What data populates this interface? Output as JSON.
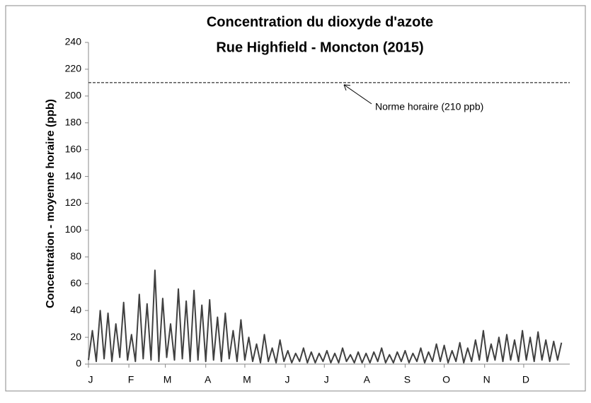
{
  "chart_data": {
    "type": "line",
    "title": "Concentration du dioxyde d'azote",
    "subtitle": "Rue Highfield - Moncton (2015)",
    "y_label": "Concentration - moyenne horaire (ppb)",
    "xlim": [
      0,
      365
    ],
    "xticks": [
      {
        "value": 0,
        "label": "J"
      },
      {
        "value": 31,
        "label": "F"
      },
      {
        "value": 59,
        "label": "M"
      },
      {
        "value": 90,
        "label": "A"
      },
      {
        "value": 120,
        "label": "M"
      },
      {
        "value": 151,
        "label": "J"
      },
      {
        "value": 181,
        "label": "J"
      },
      {
        "value": 212,
        "label": "A"
      },
      {
        "value": 243,
        "label": "S"
      },
      {
        "value": 273,
        "label": "O"
      },
      {
        "value": 304,
        "label": "N"
      },
      {
        "value": 334,
        "label": "D"
      }
    ],
    "ylim": [
      0,
      240
    ],
    "yticks": [
      0,
      20,
      40,
      60,
      80,
      100,
      120,
      140,
      160,
      180,
      200,
      220,
      240
    ],
    "reference_line": {
      "value": 210,
      "label": "Norme horaire (210 ppb)"
    },
    "series": [
      {
        "color": "#404040",
        "x": [
          0,
          3,
          6,
          9,
          12,
          15,
          18,
          21,
          24,
          27,
          30,
          33,
          36,
          39,
          42,
          45,
          48,
          51,
          54,
          57,
          60,
          63,
          66,
          69,
          72,
          75,
          78,
          81,
          84,
          87,
          90,
          93,
          96,
          99,
          102,
          105,
          108,
          111,
          114,
          117,
          120,
          123,
          126,
          129,
          132,
          135,
          138,
          141,
          144,
          147,
          150,
          153,
          156,
          159,
          162,
          165,
          168,
          171,
          174,
          177,
          180,
          183,
          186,
          189,
          192,
          195,
          198,
          201,
          204,
          207,
          210,
          213,
          216,
          219,
          222,
          225,
          228,
          231,
          234,
          237,
          240,
          243,
          246,
          249,
          252,
          255,
          258,
          261,
          264,
          267,
          270,
          273,
          276,
          279,
          282,
          285,
          288,
          291,
          294,
          297,
          300,
          303,
          306,
          309,
          312,
          315,
          318,
          321,
          324,
          327,
          330,
          333,
          336,
          339,
          342,
          345,
          348,
          351,
          354,
          357,
          360,
          363
        ],
        "values": [
          3,
          25,
          2,
          40,
          4,
          38,
          2,
          30,
          5,
          46,
          3,
          22,
          2,
          52,
          4,
          45,
          3,
          70,
          2,
          49,
          5,
          30,
          3,
          56,
          4,
          47,
          2,
          55,
          3,
          44,
          2,
          48,
          3,
          35,
          2,
          38,
          4,
          25,
          2,
          33,
          3,
          20,
          2,
          15,
          1,
          22,
          2,
          12,
          1,
          18,
          2,
          10,
          1,
          8,
          2,
          12,
          1,
          9,
          1,
          8,
          2,
          10,
          1,
          8,
          1,
          12,
          2,
          7,
          1,
          9,
          1,
          8,
          1,
          9,
          2,
          12,
          1,
          7,
          1,
          9,
          2,
          10,
          1,
          8,
          2,
          12,
          1,
          9,
          2,
          15,
          2,
          14,
          1,
          10,
          2,
          16,
          1,
          12,
          2,
          18,
          3,
          25,
          2,
          15,
          3,
          20,
          2,
          22,
          3,
          18,
          2,
          25,
          3,
          20,
          2,
          24,
          3,
          18,
          2,
          17,
          3,
          16
        ]
      }
    ]
  }
}
